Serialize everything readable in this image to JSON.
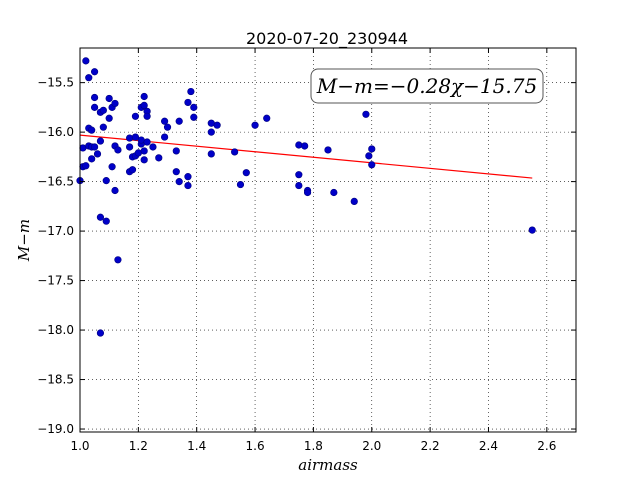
{
  "chart_data": {
    "type": "scatter",
    "title": "2020-07-20_230944",
    "xlabel": "airmass",
    "ylabel": "M−m",
    "xlim": [
      1.0,
      2.7
    ],
    "ylim": [
      -19.03,
      -15.15
    ],
    "y_inverted": true,
    "grid": true,
    "xticks": [
      1.0,
      1.2,
      1.4,
      1.6,
      1.8,
      2.0,
      2.2,
      2.4,
      2.6
    ],
    "xtick_labels": [
      "1.0",
      "1.2",
      "1.4",
      "1.6",
      "1.8",
      "2.0",
      "2.2",
      "2.4",
      "2.6"
    ],
    "yticks": [
      -15.5,
      -16.0,
      -16.5,
      -17.0,
      -17.5,
      -18.0,
      -18.5,
      -19.0
    ],
    "ytick_labels": [
      "−15.5",
      "−16.0",
      "−16.5",
      "−17.0",
      "−17.5",
      "−18.0",
      "−18.5",
      "−19.0"
    ],
    "annotation": "M−m=−0.28χ−15.75",
    "annotation_placement": "top-right",
    "colors": {
      "points": "#0000c8",
      "point_edge": "#000080",
      "fit_line": "#ff0000"
    },
    "fit_line": {
      "slope": -0.28,
      "intercept": -15.75,
      "x": [
        1.0,
        2.55
      ]
    },
    "points": [
      [
        1.0,
        -16.49
      ],
      [
        1.01,
        -16.35
      ],
      [
        1.01,
        -16.16
      ],
      [
        1.02,
        -15.28
      ],
      [
        1.02,
        -16.34
      ],
      [
        1.03,
        -15.45
      ],
      [
        1.03,
        -15.96
      ],
      [
        1.03,
        -16.14
      ],
      [
        1.04,
        -16.15
      ],
      [
        1.04,
        -15.98
      ],
      [
        1.04,
        -16.27
      ],
      [
        1.05,
        -15.39
      ],
      [
        1.05,
        -15.65
      ],
      [
        1.05,
        -16.15
      ],
      [
        1.05,
        -15.75
      ],
      [
        1.06,
        -16.22
      ],
      [
        1.07,
        -15.8
      ],
      [
        1.07,
        -16.86
      ],
      [
        1.07,
        -16.09
      ],
      [
        1.07,
        -18.03
      ],
      [
        1.08,
        -15.78
      ],
      [
        1.08,
        -15.95
      ],
      [
        1.09,
        -16.9
      ],
      [
        1.09,
        -16.49
      ],
      [
        1.1,
        -15.86
      ],
      [
        1.1,
        -15.66
      ],
      [
        1.11,
        -16.35
      ],
      [
        1.11,
        -15.75
      ],
      [
        1.12,
        -16.14
      ],
      [
        1.12,
        -16.59
      ],
      [
        1.12,
        -15.71
      ],
      [
        1.13,
        -16.18
      ],
      [
        1.13,
        -17.29
      ],
      [
        1.17,
        -16.06
      ],
      [
        1.17,
        -16.15
      ],
      [
        1.17,
        -16.4
      ],
      [
        1.18,
        -16.25
      ],
      [
        1.18,
        -16.38
      ],
      [
        1.19,
        -15.84
      ],
      [
        1.19,
        -16.24
      ],
      [
        1.19,
        -16.05
      ],
      [
        1.2,
        -16.21
      ],
      [
        1.21,
        -15.75
      ],
      [
        1.21,
        -16.12
      ],
      [
        1.21,
        -16.08
      ],
      [
        1.22,
        -15.64
      ],
      [
        1.22,
        -15.73
      ],
      [
        1.22,
        -16.28
      ],
      [
        1.22,
        -16.19
      ],
      [
        1.23,
        -16.1
      ],
      [
        1.23,
        -15.79
      ],
      [
        1.23,
        -15.84
      ],
      [
        1.25,
        -16.15
      ],
      [
        1.27,
        -16.26
      ],
      [
        1.29,
        -16.05
      ],
      [
        1.29,
        -15.89
      ],
      [
        1.3,
        -15.95
      ],
      [
        1.33,
        -16.19
      ],
      [
        1.33,
        -16.4
      ],
      [
        1.34,
        -15.89
      ],
      [
        1.34,
        -16.5
      ],
      [
        1.37,
        -16.45
      ],
      [
        1.37,
        -16.54
      ],
      [
        1.37,
        -15.7
      ],
      [
        1.38,
        -15.59
      ],
      [
        1.39,
        -15.85
      ],
      [
        1.39,
        -15.75
      ],
      [
        1.45,
        -16.22
      ],
      [
        1.45,
        -16.0
      ],
      [
        1.45,
        -15.91
      ],
      [
        1.47,
        -15.93
      ],
      [
        1.53,
        -16.2
      ],
      [
        1.55,
        -16.53
      ],
      [
        1.57,
        -16.41
      ],
      [
        1.6,
        -15.93
      ],
      [
        1.64,
        -15.86
      ],
      [
        1.75,
        -16.13
      ],
      [
        1.75,
        -16.43
      ],
      [
        1.75,
        -16.54
      ],
      [
        1.77,
        -16.14
      ],
      [
        1.78,
        -16.59
      ],
      [
        1.78,
        -16.61
      ],
      [
        1.85,
        -16.18
      ],
      [
        1.87,
        -16.61
      ],
      [
        1.94,
        -16.7
      ],
      [
        1.98,
        -15.82
      ],
      [
        1.99,
        -16.24
      ],
      [
        2.0,
        -16.17
      ],
      [
        2.0,
        -16.33
      ],
      [
        2.55,
        -16.99
      ]
    ]
  }
}
